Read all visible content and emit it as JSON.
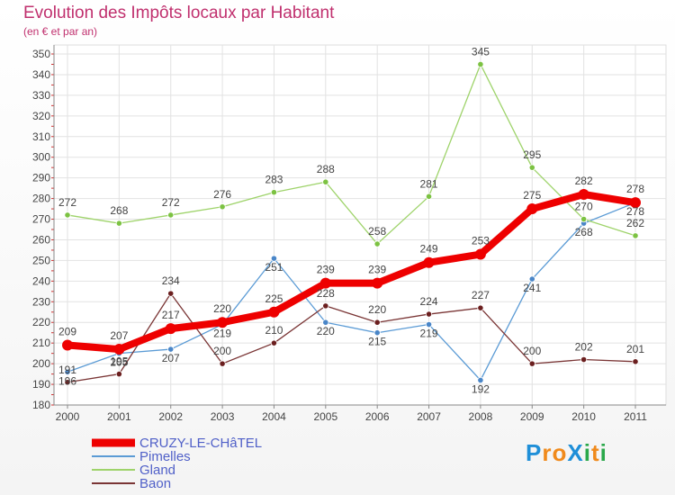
{
  "title": "Evolution des Impôts locaux par Habitant",
  "subtitle": "(en € et par an)",
  "logo_text": "ProXiti",
  "chart_data": {
    "type": "line",
    "title": "Evolution des Impôts locaux par Habitant",
    "subtitle": "(en € et par an)",
    "xlabel": "",
    "ylabel": "",
    "x": [
      "2000",
      "2001",
      "2002",
      "2003",
      "2004",
      "2005",
      "2006",
      "2007",
      "2008",
      "2009",
      "2010",
      "2011"
    ],
    "ylim": [
      180,
      350
    ],
    "yticks": [
      180,
      190,
      200,
      210,
      220,
      230,
      240,
      250,
      260,
      270,
      280,
      290,
      300,
      310,
      320,
      330,
      340,
      350
    ],
    "grid": true,
    "legend_position": "bottom-left",
    "series": [
      {
        "name": "Pimelles",
        "color": "#5b9bd5",
        "values": [
          196,
          205,
          207,
          219,
          251,
          220,
          215,
          219,
          192,
          241,
          268,
          278
        ]
      },
      {
        "name": "Gland",
        "color": "#92d050",
        "values": [
          272,
          268,
          272,
          276,
          283,
          288,
          258,
          281,
          345,
          295,
          270,
          262
        ]
      },
      {
        "name": "Baon",
        "color": "#6b2a2a",
        "values": [
          191,
          195,
          234,
          200,
          210,
          228,
          220,
          224,
          227,
          200,
          202,
          201
        ]
      },
      {
        "name": "CRUZY-LE-CHâTEL",
        "color": "#ee0000",
        "values": [
          209,
          207,
          217,
          220,
          225,
          239,
          239,
          249,
          253,
          275,
          282,
          278
        ]
      }
    ],
    "legend": [
      "CRUZY-LE-CHâTEL",
      "Pimelles",
      "Gland",
      "Baon"
    ]
  }
}
